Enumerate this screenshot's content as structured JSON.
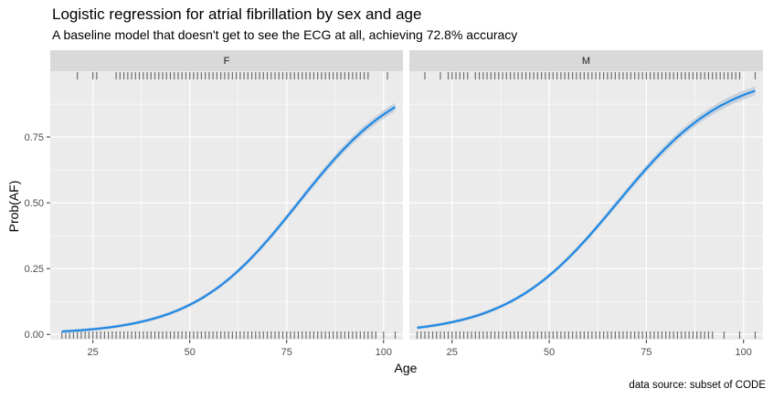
{
  "title": "Logistic regression for atrial fibrillation by sex and age",
  "subtitle": "A baseline model that doesn't get to see the ECG at all, achieving 72.8% accuracy",
  "caption": "data source: subset of CODE",
  "colors": {
    "panel_bg": "#ebebeb",
    "strip_bg": "#d9d9d9",
    "grid": "#ffffff",
    "line": "#1e88e5",
    "ribbon": "#c4cfdb",
    "rug": "#6e6e6e",
    "axis_text": "#4d4d4d"
  },
  "chart_data": {
    "type": "line",
    "title": "Logistic regression for atrial fibrillation by sex and age",
    "subtitle": "A baseline model that doesn't get to see the ECG at all, achieving 72.8% accuracy",
    "xlabel": "Age",
    "ylabel": "Prob(AF)",
    "xlim": [
      14,
      105
    ],
    "ylim": [
      -0.02,
      1.0
    ],
    "x_ticks": [
      25,
      50,
      75,
      100
    ],
    "x_tick_labels": [
      "25",
      "50",
      "75",
      "100"
    ],
    "y_ticks": [
      0.0,
      0.25,
      0.5,
      0.75
    ],
    "y_tick_labels": [
      "0.00",
      "0.25",
      "0.50",
      "0.75"
    ],
    "grid": true,
    "facets": [
      {
        "label": "F",
        "age_range": [
          17,
          103
        ],
        "curve": [
          {
            "x": 17,
            "y": 0.012
          },
          {
            "x": 25,
            "y": 0.019
          },
          {
            "x": 35,
            "y": 0.037
          },
          {
            "x": 45,
            "y": 0.076
          },
          {
            "x": 55,
            "y": 0.15
          },
          {
            "x": 65,
            "y": 0.283
          },
          {
            "x": 75,
            "y": 0.467
          },
          {
            "x": 85,
            "y": 0.655
          },
          {
            "x": 95,
            "y": 0.785
          },
          {
            "x": 103,
            "y": 0.845
          }
        ],
        "rug_top": [
          21,
          25,
          26,
          31,
          32,
          33,
          34,
          35,
          36,
          37,
          38,
          39,
          40,
          41,
          42,
          43,
          44,
          45,
          46,
          47,
          48,
          49,
          50,
          51,
          52,
          53,
          54,
          55,
          56,
          57,
          58,
          59,
          60,
          61,
          62,
          63,
          64,
          65,
          66,
          67,
          68,
          69,
          70,
          71,
          72,
          73,
          74,
          75,
          76,
          77,
          78,
          79,
          80,
          81,
          82,
          83,
          84,
          85,
          86,
          87,
          88,
          89,
          90,
          91,
          92,
          93,
          94,
          95,
          96,
          101
        ],
        "rug_bottom": [
          17,
          18,
          19,
          20,
          21,
          22,
          23,
          24,
          25,
          26,
          27,
          28,
          29,
          30,
          31,
          32,
          33,
          34,
          35,
          36,
          37,
          38,
          39,
          40,
          41,
          42,
          43,
          44,
          45,
          46,
          47,
          48,
          49,
          50,
          51,
          52,
          53,
          54,
          55,
          56,
          57,
          58,
          59,
          60,
          61,
          62,
          63,
          64,
          65,
          66,
          67,
          68,
          69,
          70,
          71,
          72,
          73,
          74,
          75,
          76,
          77,
          78,
          79,
          80,
          81,
          82,
          83,
          84,
          85,
          86,
          87,
          88,
          89,
          90,
          91,
          92,
          93,
          94,
          95,
          96,
          97,
          98,
          100,
          103
        ]
      },
      {
        "label": "M",
        "age_range": [
          16,
          103
        ],
        "curve": [
          {
            "x": 16,
            "y": 0.028
          },
          {
            "x": 25,
            "y": 0.045
          },
          {
            "x": 35,
            "y": 0.087
          },
          {
            "x": 45,
            "y": 0.16
          },
          {
            "x": 55,
            "y": 0.285
          },
          {
            "x": 65,
            "y": 0.455
          },
          {
            "x": 75,
            "y": 0.63
          },
          {
            "x": 85,
            "y": 0.78
          },
          {
            "x": 95,
            "y": 0.88
          },
          {
            "x": 103,
            "y": 0.925
          }
        ],
        "rug_top": [
          18,
          22,
          24,
          25,
          26,
          27,
          28,
          29,
          31,
          32,
          33,
          34,
          35,
          36,
          37,
          38,
          39,
          40,
          41,
          42,
          43,
          44,
          45,
          46,
          47,
          48,
          49,
          50,
          51,
          52,
          53,
          54,
          55,
          56,
          57,
          58,
          59,
          60,
          61,
          62,
          63,
          64,
          65,
          66,
          67,
          68,
          69,
          70,
          71,
          72,
          73,
          74,
          75,
          76,
          77,
          78,
          79,
          80,
          81,
          82,
          83,
          84,
          85,
          86,
          87,
          88,
          89,
          90,
          91,
          92,
          93,
          94,
          95,
          96,
          97,
          98,
          99,
          103
        ],
        "rug_bottom": [
          16,
          17,
          18,
          19,
          20,
          21,
          22,
          23,
          24,
          25,
          26,
          27,
          28,
          29,
          30,
          31,
          32,
          33,
          34,
          35,
          36,
          37,
          38,
          39,
          40,
          41,
          42,
          43,
          44,
          45,
          46,
          47,
          48,
          49,
          50,
          51,
          52,
          53,
          54,
          55,
          56,
          57,
          58,
          59,
          60,
          61,
          62,
          63,
          64,
          65,
          66,
          67,
          68,
          69,
          70,
          71,
          72,
          73,
          74,
          75,
          76,
          77,
          78,
          79,
          80,
          81,
          82,
          83,
          84,
          85,
          86,
          87,
          88,
          89,
          90,
          91,
          92,
          95,
          99,
          103
        ]
      }
    ]
  }
}
